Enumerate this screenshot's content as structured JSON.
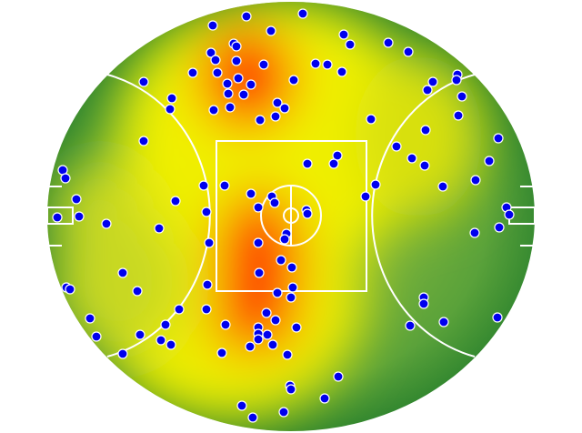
{
  "chart_data": {
    "type": "scatter",
    "color": "#0000ee",
    "x": [
      234,
      271,
      333,
      298,
      378,
      385,
      427,
      449,
      232,
      257,
      260,
      237,
      260,
      290,
      347,
      360,
      376,
      212,
      239,
      262,
      250,
      323,
      158,
      251,
      268,
      276,
      189,
      187,
      305,
      313,
      235,
      253,
      303,
      286,
      408,
      476,
      470,
      503,
      502,
      508,
      504,
      468,
      158,
      548,
      436,
      453,
      467,
      371,
      367,
      338,
      538,
      69,
      72,
      523,
      487,
      413,
      402,
      247,
      224,
      276,
      299,
      302,
      284,
      84,
      193,
      337,
      338,
      557,
      560,
      63,
      87,
      117,
      227,
      175,
      549,
      522,
      315,
      313,
      284,
      230,
      309,
      321,
      135,
      285,
      151,
      73,
      77,
      322,
      305,
      320,
      466,
      466,
      228,
      197,
      99,
      182,
      293,
      303,
      227,
      248,
      284,
      284,
      294,
      326,
      284,
      106,
      154,
      177,
      188,
      275,
      300,
      316,
      244,
      451,
      488,
      547,
      135,
      372,
      319,
      320,
      357,
      266,
      312,
      278
    ],
    "y": [
      28,
      18,
      15,
      34,
      38,
      49,
      47,
      57,
      58,
      48,
      51,
      66,
      67,
      71,
      70,
      71,
      79,
      80,
      80,
      86,
      92,
      88,
      90,
      103,
      104,
      93,
      108,
      120,
      113,
      119,
      121,
      118,
      128,
      132,
      131,
      90,
      99,
      82,
      88,
      106,
      127,
      143,
      155,
      152,
      161,
      174,
      182,
      171,
      180,
      180,
      177,
      187,
      196,
      198,
      205,
      203,
      216,
      204,
      204,
      213,
      216,
      223,
      228,
      219,
      221,
      231,
      235,
      228,
      236,
      239,
      238,
      246,
      233,
      251,
      250,
      256,
      257,
      263,
      267,
      267,
      286,
      294,
      300,
      300,
      320,
      316,
      318,
      316,
      322,
      327,
      327,
      334,
      313,
      340,
      350,
      357,
      344,
      352,
      340,
      357,
      360,
      367,
      368,
      360,
      373,
      370,
      368,
      374,
      379,
      381,
      379,
      390,
      388,
      358,
      354,
      349,
      389,
      414,
      424,
      428,
      438,
      446,
      453,
      459
    ]
  }
}
